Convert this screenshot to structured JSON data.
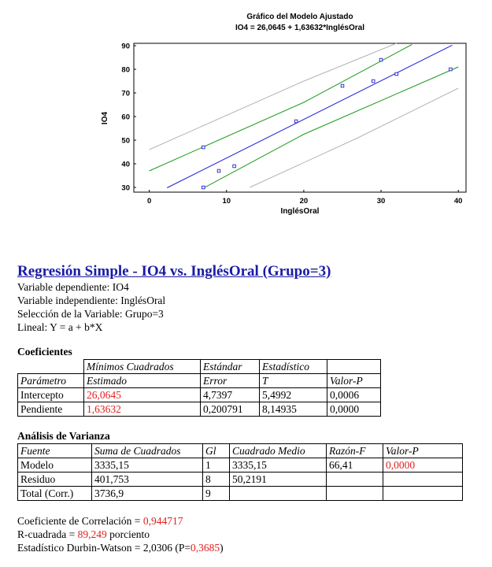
{
  "chart_data": {
    "type": "scatter",
    "title": "Gráfico del Modelo Ajustado",
    "subtitle": "IO4 = 26,0645 + 1,63632*InglésOral",
    "xlabel": "InglésOral",
    "ylabel": "IO4",
    "xlim": [
      -2,
      41
    ],
    "ylim": [
      28,
      91
    ],
    "xticks": [
      0,
      10,
      20,
      30,
      40
    ],
    "yticks": [
      30,
      40,
      50,
      60,
      70,
      80,
      90
    ],
    "grid": false,
    "points": [
      {
        "x": 7,
        "y": 47
      },
      {
        "x": 7,
        "y": 30
      },
      {
        "x": 9,
        "y": 37
      },
      {
        "x": 11,
        "y": 39
      },
      {
        "x": 19,
        "y": 58
      },
      {
        "x": 25,
        "y": 73
      },
      {
        "x": 29,
        "y": 75
      },
      {
        "x": 30,
        "y": 84
      },
      {
        "x": 32,
        "y": 78
      },
      {
        "x": 39,
        "y": 80
      }
    ],
    "fit": {
      "intercept": 26.0645,
      "slope": 1.63632,
      "x_range": [
        2.3,
        39.2
      ]
    },
    "confidence_limits": {
      "lower_lines": [
        [
          7,
          29.7
        ],
        [
          20,
          52.5
        ],
        [
          40,
          81
        ]
      ],
      "upper_lines": [
        [
          0,
          37
        ],
        [
          20,
          66
        ],
        [
          34,
          90.5
        ]
      ]
    },
    "prediction_limits": {
      "lower_lines": [
        [
          13,
          30
        ],
        [
          27,
          51
        ],
        [
          40,
          72
        ]
      ],
      "upper_lines": [
        [
          0,
          46
        ],
        [
          20,
          75
        ],
        [
          32,
          91
        ]
      ]
    },
    "colors": {
      "points": "#1f1fd0",
      "fit": "#1f1fd0",
      "confidence": "#1a9a1a",
      "prediction": "#b4b4b4"
    }
  },
  "report": {
    "title": "Regresión Simple - IO4 vs. InglésOral (Grupo=3)",
    "info_lines": [
      "Variable dependiente: IO4",
      "Variable independiente: InglésOral",
      "Selección de la Variable: Grupo=3",
      "Lineal: Y = a + b*X"
    ]
  },
  "coeficientes": {
    "heading": "Coeficientes",
    "header1": [
      "",
      "Mínimos Cuadrados",
      "Estándar",
      "Estadístico",
      ""
    ],
    "header2": [
      "Parámetro",
      "Estimado",
      "Error",
      "T",
      "Valor-P"
    ],
    "rows": [
      [
        "Intercepto",
        "26,0645",
        "4,7397",
        "5,4992",
        "0,0006"
      ],
      [
        "Pendiente",
        "1,63632",
        "0,200791",
        "8,14935",
        "0,0000"
      ]
    ]
  },
  "varianza": {
    "heading": "Análisis de Varianza",
    "header": [
      "Fuente",
      "Suma de Cuadrados",
      "Gl",
      "Cuadrado Medio",
      "Razón-F",
      "Valor-P"
    ],
    "rows": [
      [
        "Modelo",
        "3335,15",
        "1",
        "3335,15",
        "66,41",
        "0,0000"
      ],
      [
        "Residuo",
        "401,753",
        "8",
        "50,2191",
        "",
        ""
      ],
      [
        "Total (Corr.)",
        "3736,9",
        "9",
        "",
        "",
        ""
      ]
    ]
  },
  "summary": {
    "correlation_label": "Coeficiente de Correlación = ",
    "correlation_value": "0,944717",
    "r2_label": "R-cuadrada = ",
    "r2_value": "89,249",
    "r2_suffix": " porciento",
    "dw_label": "Estadístico Durbin-Watson = 2,0306 (P=",
    "dw_value": "0,3685",
    "dw_suffix": ")"
  },
  "highlight_color": "#e0201e"
}
